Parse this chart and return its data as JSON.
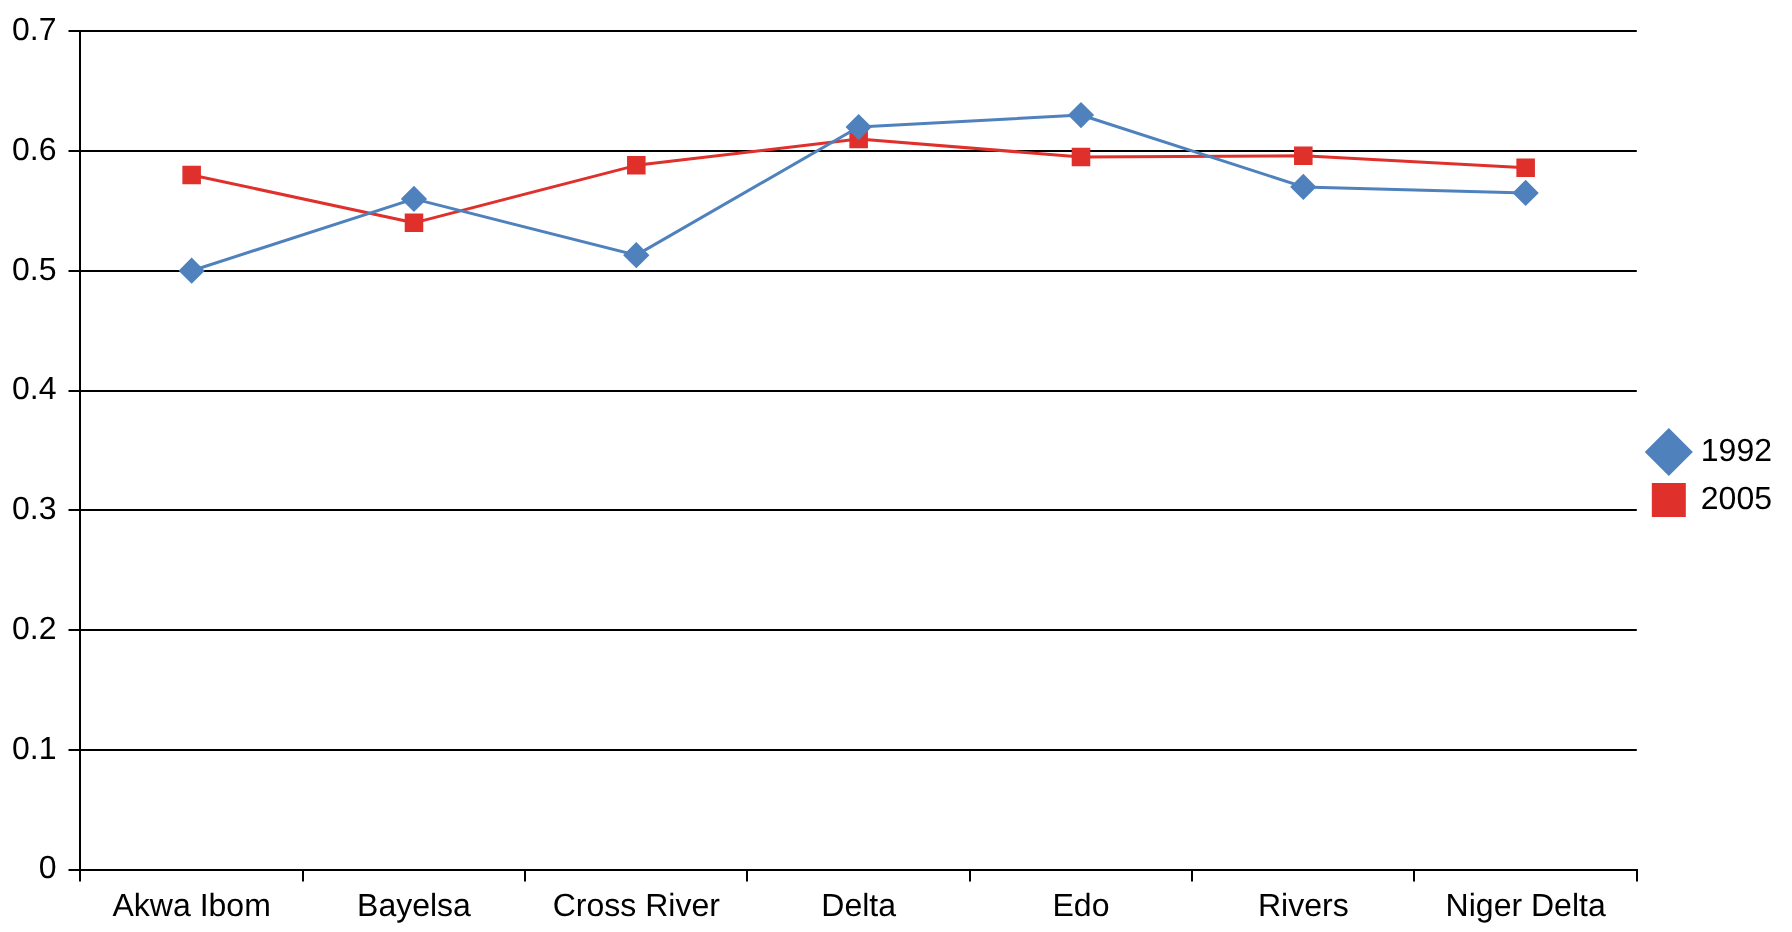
{
  "chart_data": {
    "type": "line",
    "categories": [
      "Akwa Ibom",
      "Bayelsa",
      "Cross River",
      "Delta",
      "Edo",
      "Rivers",
      "Niger Delta"
    ],
    "series": [
      {
        "name": "1992",
        "color": "#4f81bd",
        "marker": "diamond",
        "values": [
          0.5,
          0.56,
          0.513,
          0.62,
          0.63,
          0.57,
          0.565
        ]
      },
      {
        "name": "2005",
        "color": "#e0302c",
        "marker": "square",
        "values": [
          0.58,
          0.54,
          0.588,
          0.61,
          0.595,
          0.596,
          0.586
        ]
      }
    ],
    "ylim": [
      0,
      0.7
    ],
    "yticks": [
      0,
      0.1,
      0.2,
      0.3,
      0.4,
      0.5,
      0.6,
      0.7
    ],
    "grid": "y",
    "legend": "right",
    "line_style": "solid"
  }
}
